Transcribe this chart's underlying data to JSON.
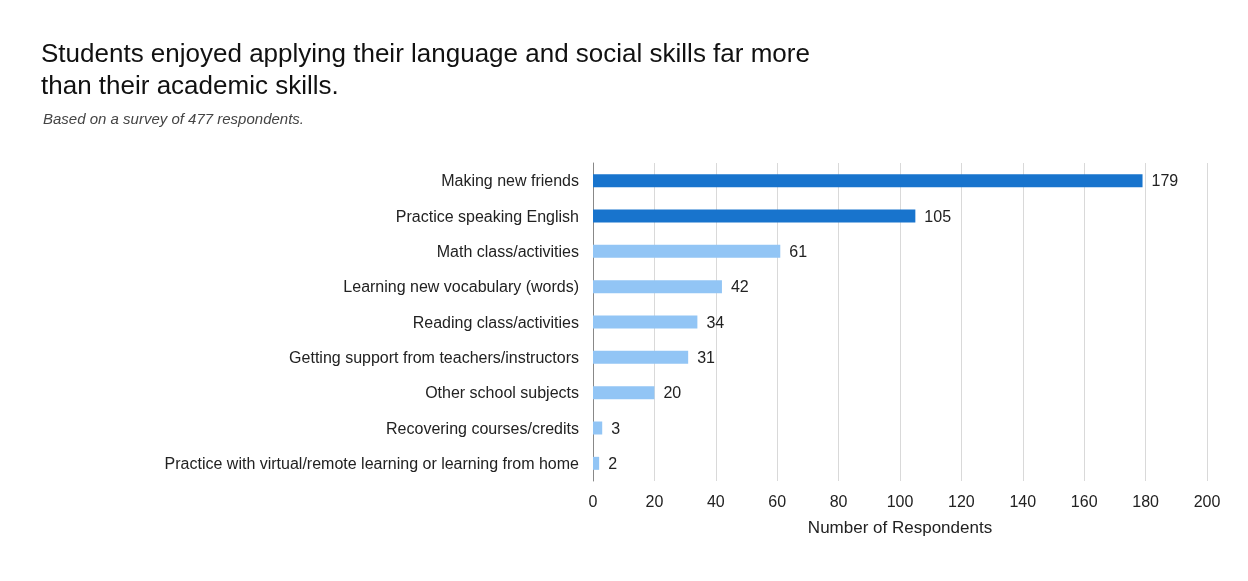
{
  "chart_data": {
    "type": "bar",
    "orientation": "horizontal",
    "title": "Students enjoyed applying their language and social skills far more\nthan their academic skills.",
    "subtitle": "Based on a survey of 477 respondents.",
    "xlabel": "Number of Respondents",
    "categories": [
      "Making new friends",
      "Practice speaking English",
      "Math class/activities",
      "Learning new vocabulary (words)",
      "Reading class/activities",
      "Getting support from teachers/instructors",
      "Other school subjects",
      "Recovering courses/credits",
      "Practice with virtual/remote learning or learning from home"
    ],
    "values": [
      179,
      105,
      61,
      42,
      34,
      31,
      20,
      3,
      2
    ],
    "colors": [
      "#1874cd",
      "#1874cd",
      "#92c5f5",
      "#92c5f5",
      "#92c5f5",
      "#92c5f5",
      "#92c5f5",
      "#92c5f5",
      "#92c5f5"
    ],
    "xlim": [
      0,
      200
    ],
    "xticks": [
      0,
      20,
      40,
      60,
      80,
      100,
      120,
      140,
      160,
      180,
      200
    ],
    "grid": "x",
    "data_labels": true
  }
}
